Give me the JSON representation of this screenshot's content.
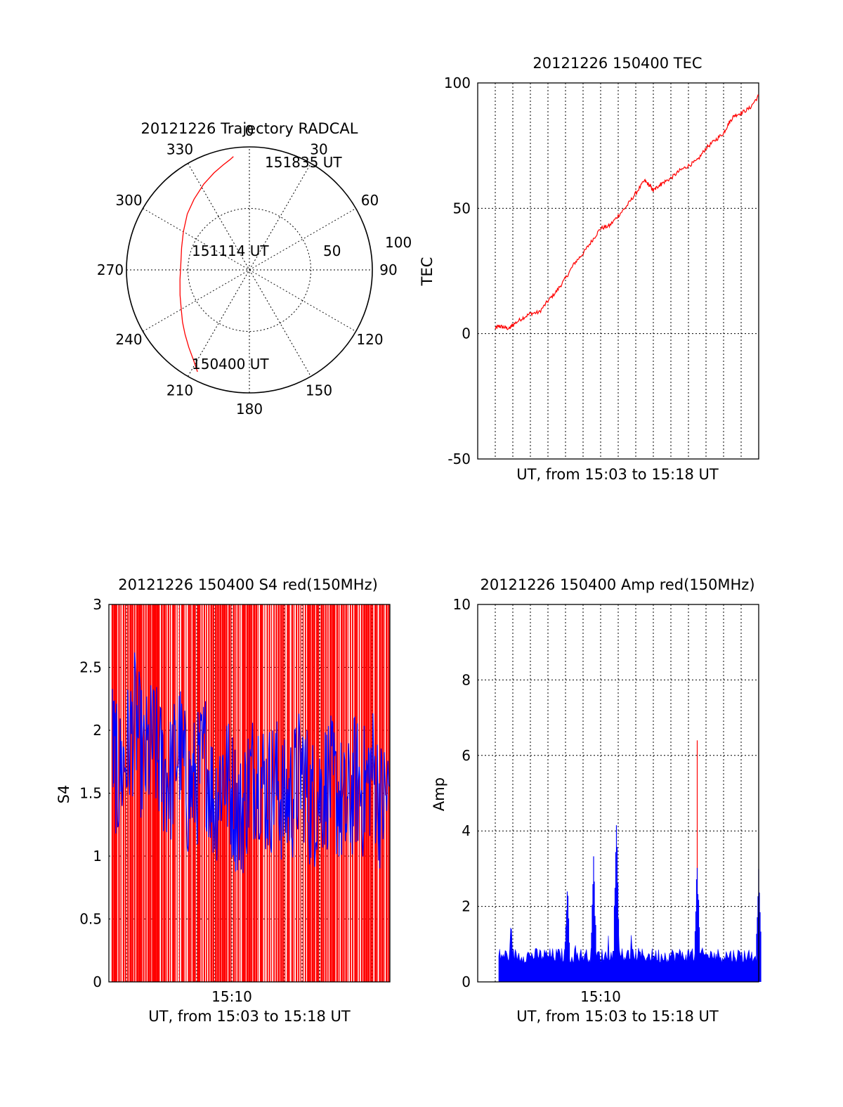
{
  "chart_data": [
    {
      "type": "polar",
      "title": "20121226 Trajectory RADCAL",
      "angle_labels": [
        "0",
        "30",
        "60",
        "90",
        "120",
        "150",
        "180",
        "210",
        "240",
        "270",
        "300",
        "330"
      ],
      "radial_labels": [
        "50",
        "100"
      ],
      "radial_values": [
        50,
        100
      ],
      "trajectory": {
        "color": "#ff0000",
        "azimuth_deg": [
          207,
          212,
          218,
          225,
          232,
          240,
          250,
          262,
          275,
          288,
          300,
          312,
          322,
          332,
          340,
          346,
          350,
          352
        ],
        "radius": [
          93,
          86,
          80,
          74,
          69,
          64,
          60,
          57,
          56,
          58,
          62,
          68,
          73,
          79,
          84,
          88,
          91,
          93
        ]
      },
      "annotations": [
        {
          "text": "151835 UT",
          "azimuth_deg": 352,
          "radius": 93
        },
        {
          "text": "151114 UT",
          "azimuth_deg": 280,
          "radius": 60
        },
        {
          "text": "150400 UT",
          "azimuth_deg": 207,
          "radius": 93
        }
      ],
      "grid": true
    },
    {
      "type": "line",
      "title": "20121226 150400 TEC",
      "xlabel": "UT, from 15:03 to 15:18 UT",
      "ylabel": "TEC",
      "ylim": [
        -50,
        100
      ],
      "yticks": [
        "100",
        "50",
        "0",
        "-50"
      ],
      "ytick_values": [
        100,
        50,
        0,
        -50
      ],
      "xlim": [
        0,
        16
      ],
      "xtick_labels": [],
      "series": [
        {
          "color": "#ff0000",
          "x": [
            1.0,
            1.2,
            1.5,
            1.8,
            2.0,
            2.5,
            3.0,
            3.5,
            4.0,
            4.5,
            5.0,
            5.5,
            6.0,
            6.5,
            7.0,
            7.5,
            8.0,
            8.5,
            9.0,
            9.5,
            9.8,
            10.0,
            10.3,
            10.5,
            11.0,
            11.5,
            12.0,
            12.5,
            13.0,
            13.5,
            14.0,
            14.3,
            14.6,
            15.0,
            15.5,
            16.0
          ],
          "y": [
            2,
            3,
            2.5,
            2,
            3.5,
            6,
            8,
            8.5,
            13,
            17,
            22,
            28,
            32,
            37,
            42,
            43,
            47,
            51,
            56,
            61,
            59,
            57,
            59,
            60,
            62,
            65,
            67,
            69,
            74,
            77,
            80,
            84,
            87,
            88,
            90,
            95
          ]
        }
      ],
      "grid": true
    },
    {
      "type": "line",
      "title": "20121226 150400 S4 red(150MHz)",
      "xlabel": "UT, from 15:03 to 15:18 UT",
      "ylabel": "S4",
      "ylim": [
        0,
        3
      ],
      "yticks": [
        "3",
        "2.5",
        "2",
        "1.5",
        "1",
        "0.5",
        "0"
      ],
      "ytick_values": [
        3,
        2.5,
        2,
        1.5,
        1,
        0.5,
        0
      ],
      "xlim": [
        0,
        16
      ],
      "xtick_labels": [
        "15:10"
      ],
      "xtick_values": [
        7
      ],
      "series": [
        {
          "color": "#ff0000",
          "description": "oscillates rapidly between 0 and 3 across the whole interval",
          "x_start": 0.15,
          "x_end": 16,
          "y_min": 0,
          "y_max": 3
        },
        {
          "color": "#0000ff",
          "x": [
            0.2,
            0.5,
            1.0,
            1.5,
            2.0,
            2.5,
            3.0,
            3.5,
            4.0,
            4.5,
            5.0,
            5.5,
            6.0,
            6.5,
            7.0,
            7.5,
            8.0,
            8.5,
            9.0,
            9.5,
            10.0,
            10.5,
            11.0,
            11.5,
            12.0,
            12.5,
            13.0,
            13.5,
            14.0,
            14.5,
            15.0,
            15.5,
            16.0
          ],
          "y": [
            1.9,
            1.6,
            1.8,
            2.1,
            1.7,
            1.9,
            1.7,
            1.6,
            1.9,
            1.5,
            1.6,
            1.8,
            1.4,
            1.7,
            1.5,
            1.3,
            1.6,
            1.7,
            1.5,
            1.6,
            1.4,
            1.5,
            1.7,
            1.4,
            1.5,
            1.6,
            1.5,
            1.3,
            1.6,
            1.5,
            1.7,
            1.4,
            1.5
          ],
          "y_min": 0.7,
          "y_max": 2.95
        }
      ],
      "grid": true
    },
    {
      "type": "line",
      "title": "20121226 150400 Amp red(150MHz)",
      "xlabel": "UT, from 15:03 to 15:18 UT",
      "ylabel": "Amp",
      "ylim": [
        0,
        10
      ],
      "yticks": [
        "10",
        "8",
        "6",
        "4",
        "2",
        "0"
      ],
      "ytick_values": [
        10,
        8,
        6,
        4,
        2,
        0
      ],
      "xlim": [
        0,
        16
      ],
      "xtick_labels": [
        "15:10"
      ],
      "xtick_values": [
        7
      ],
      "series": [
        {
          "color": "#ff0000",
          "peaks": [
            {
              "x": 12.5,
              "y": 6.4
            }
          ]
        },
        {
          "color": "#0000ff",
          "x_start": 1.2,
          "x_end": 16,
          "baseline_max": 0.9,
          "peaks": [
            {
              "x": 5.1,
              "y": 2.8
            },
            {
              "x": 6.6,
              "y": 3.4
            },
            {
              "x": 7.9,
              "y": 4.4
            },
            {
              "x": 12.5,
              "y": 3.4
            },
            {
              "x": 16.0,
              "y": 3.1
            }
          ]
        }
      ],
      "grid": true
    }
  ]
}
